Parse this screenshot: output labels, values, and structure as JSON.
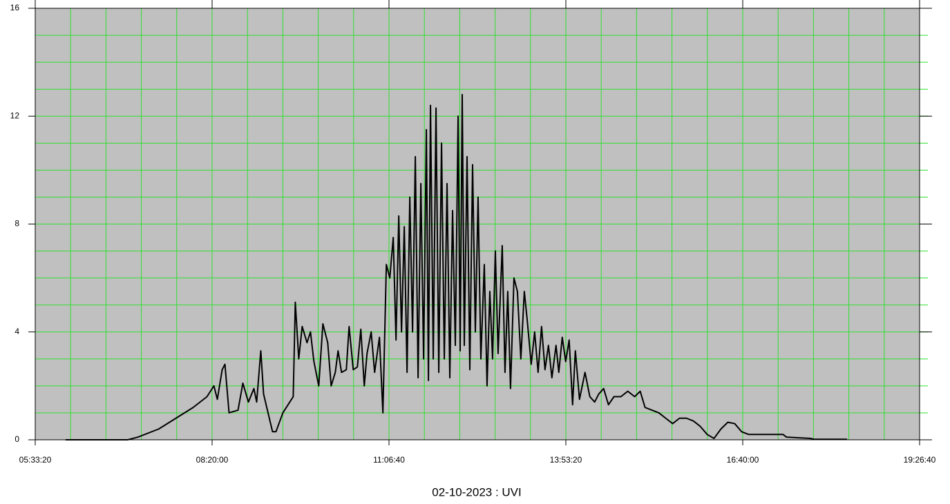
{
  "chart_data": {
    "type": "line",
    "title": "02-10-2023 : UVI",
    "x": [
      21716,
      25226,
      25811,
      26981,
      27956,
      28931,
      29711,
      30101,
      30296,
      30569,
      30725,
      30959,
      31466,
      31739,
      32051,
      32363,
      32519,
      32753,
      32909,
      33416,
      33611,
      34001,
      34391,
      34586,
      34703,
      34898,
      35093,
      35366,
      35561,
      35756,
      36029,
      36263,
      36536,
      36731,
      36965,
      37121,
      37316,
      37589,
      37745,
      37979,
      38213,
      38408,
      38603,
      38759,
      38993,
      39188,
      39461,
      39656,
      39851,
      40046,
      40241,
      40397,
      40553,
      40709,
      40865,
      41021,
      41177,
      41333,
      41489,
      41645,
      41801,
      41957,
      42113,
      42230,
      42347,
      42503,
      42659,
      42815,
      42971,
      43127,
      43283,
      43439,
      43595,
      43751,
      43907,
      44024,
      44141,
      44258,
      44414,
      44570,
      44726,
      44882,
      45038,
      45194,
      45389,
      45545,
      45701,
      45857,
      46013,
      46169,
      46403,
      46559,
      46715,
      46871,
      47066,
      47261,
      47456,
      47651,
      47807,
      48041,
      48236,
      48431,
      48626,
      48821,
      49016,
      49211,
      49445,
      49601,
      49796,
      49991,
      50186,
      50381,
      50537,
      50771,
      51083,
      51356,
      51629,
      51863,
      52136,
      52409,
      52721,
      53111,
      53501,
      53891,
      54203,
      54476,
      54866,
      55256,
      55646,
      56036,
      56426,
      56816,
      57206,
      57596,
      57986,
      58376,
      58766,
      59156,
      59546,
      59936,
      60326,
      60911,
      62276,
      62471,
      63836,
      64031,
      65903
    ],
    "series": [
      {
        "color": "#000000",
        "values": [
          0,
          0,
          0.1,
          0.4,
          0.8,
          1.2,
          1.6,
          2.0,
          1.5,
          2.6,
          2.8,
          1.0,
          1.1,
          2.1,
          1.4,
          1.9,
          1.4,
          3.3,
          1.7,
          0.3,
          0.3,
          1.0,
          1.4,
          1.6,
          5.1,
          3.0,
          4.2,
          3.6,
          4.0,
          2.9,
          2.0,
          4.3,
          3.6,
          2.0,
          2.5,
          3.3,
          2.5,
          2.6,
          4.2,
          2.6,
          2.7,
          4.1,
          2.0,
          3.2,
          4.0,
          2.5,
          3.8,
          1.0,
          6.5,
          6.0,
          7.5,
          3.7,
          8.3,
          4.0,
          7.9,
          2.5,
          9.0,
          4.0,
          10.5,
          2.3,
          9.5,
          3.0,
          11.5,
          2.2,
          12.4,
          3.0,
          12.3,
          2.5,
          11.0,
          3.0,
          9.5,
          2.3,
          8.5,
          3.5,
          12.0,
          3.3,
          12.8,
          3.5,
          10.5,
          2.6,
          10.2,
          4.0,
          9.0,
          3.0,
          6.5,
          2.0,
          5.5,
          3.0,
          7.0,
          3.2,
          7.2,
          2.5,
          5.5,
          1.9,
          6.0,
          5.5,
          3.0,
          5.5,
          4.5,
          2.8,
          4.0,
          2.5,
          4.2,
          2.6,
          3.5,
          2.3,
          3.5,
          2.5,
          3.8,
          2.9,
          3.7,
          1.3,
          3.3,
          1.5,
          2.5,
          1.6,
          1.4,
          1.7,
          1.9,
          1.3,
          1.6,
          1.6,
          1.8,
          1.6,
          1.8,
          1.2,
          1.1,
          1.0,
          0.8,
          0.6,
          0.8,
          0.8,
          0.7,
          0.5,
          0.2,
          0.05,
          0.4,
          0.65,
          0.6,
          0.3,
          0.2,
          0.2,
          0.2,
          0.1,
          0.05,
          0.02,
          0.02
        ]
      }
    ],
    "xlim": [
      20000,
      70000
    ],
    "xticks": [
      {
        "value": 20000,
        "label": "05:33:20"
      },
      {
        "value": 30000,
        "label": "08:20:00"
      },
      {
        "value": 40000,
        "label": "11:06:40"
      },
      {
        "value": 50000,
        "label": "13:53:20"
      },
      {
        "value": 60000,
        "label": "16:40:00"
      },
      {
        "value": 70000,
        "label": "19:26:40"
      }
    ],
    "ylim": [
      0,
      16
    ],
    "yticks": [
      0,
      4,
      8,
      12,
      16
    ],
    "grid": true,
    "grid_color": "#2ee02e",
    "plot_background": "#c0c0c0",
    "x_grid_step": 2000,
    "y_grid_step": 1
  }
}
